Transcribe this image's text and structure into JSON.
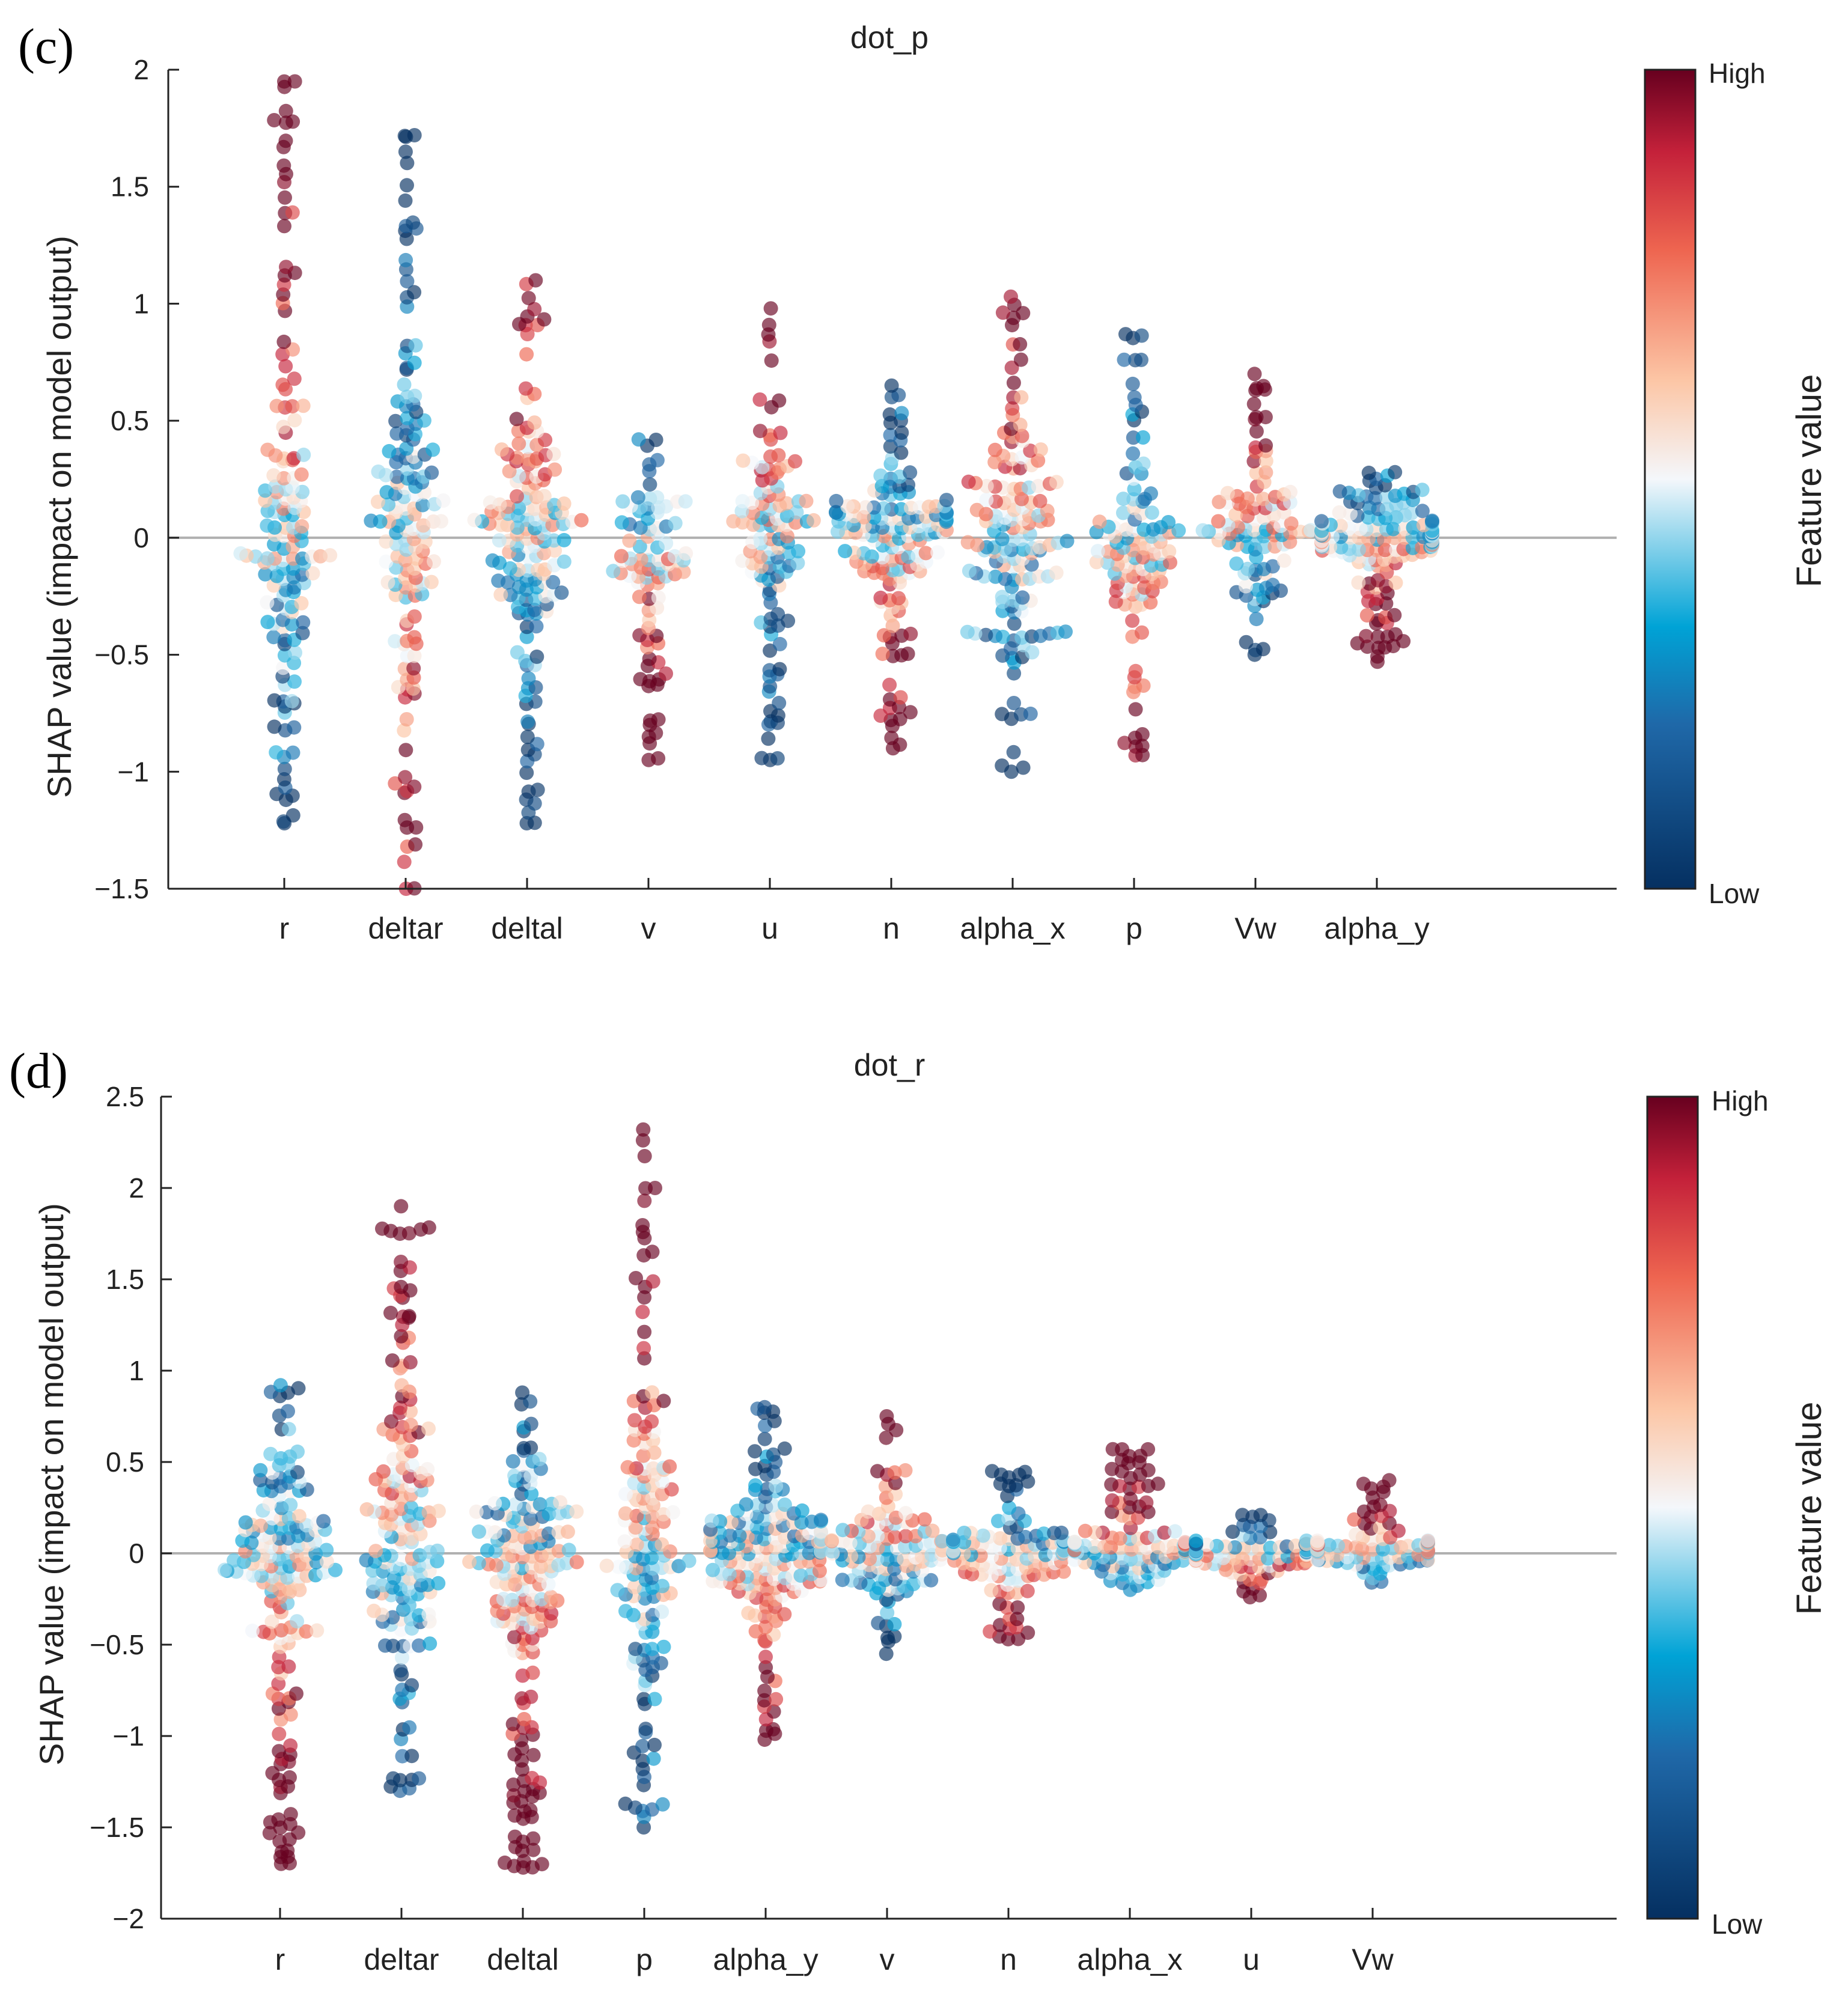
{
  "chart_data": [
    {
      "panel_label": "(c)",
      "type": "scatter",
      "subtype": "shap-beeswarm",
      "title": "dot_p",
      "ylabel": "SHAP value (impact on model output)",
      "xlabel": "",
      "ylim": [
        -1.5,
        2
      ],
      "yticks": [
        2,
        1.5,
        1,
        0.5,
        0,
        -0.5,
        -1,
        -1.5
      ],
      "ytick_labels": [
        "2",
        "1.5",
        "1",
        "0.5",
        "0",
        "−0.5",
        "−1",
        "−1.5"
      ],
      "categories": [
        "r",
        "deltar",
        "deltal",
        "v",
        "u",
        "n",
        "alpha_x",
        "p",
        "Vw",
        "alpha_y"
      ],
      "zero_line": true,
      "colorbar": {
        "label": "Feature value",
        "high": "High",
        "low": "Low"
      },
      "features": [
        {
          "name": "r",
          "min": -1.22,
          "max": 1.95,
          "count": 150
        },
        {
          "name": "deltar",
          "min": -1.5,
          "max": 1.72,
          "count": 150
        },
        {
          "name": "deltal",
          "min": -1.22,
          "max": 1.1,
          "count": 160
        },
        {
          "name": "v",
          "min": -0.95,
          "max": 0.42,
          "count": 90
        },
        {
          "name": "u",
          "min": -0.95,
          "max": 0.98,
          "count": 110
        },
        {
          "name": "n",
          "min": -0.9,
          "max": 0.65,
          "count": 150
        },
        {
          "name": "alpha_x",
          "min": -1.0,
          "max": 1.03,
          "count": 150
        },
        {
          "name": "p",
          "min": -0.93,
          "max": 0.87,
          "count": 110
        },
        {
          "name": "Vw",
          "min": -0.5,
          "max": 0.7,
          "count": 100
        },
        {
          "name": "alpha_y",
          "min": -0.53,
          "max": 0.28,
          "count": 150
        }
      ]
    },
    {
      "panel_label": "(d)",
      "type": "scatter",
      "subtype": "shap-beeswarm",
      "title": "dot_r",
      "ylabel": "SHAP value (impact on model output)",
      "xlabel": "",
      "ylim": [
        -2,
        2.5
      ],
      "yticks": [
        2.5,
        2,
        1.5,
        1,
        0.5,
        0,
        -0.5,
        -1,
        -1.5,
        -2
      ],
      "ytick_labels": [
        "2.5",
        "2",
        "1.5",
        "1",
        "0.5",
        "0",
        "−0.5",
        "−1",
        "−1.5",
        "−2"
      ],
      "categories": [
        "r",
        "deltar",
        "deltal",
        "p",
        "alpha_y",
        "v",
        "n",
        "alpha_x",
        "u",
        "Vw"
      ],
      "zero_line": true,
      "colorbar": {
        "label": "Feature value",
        "high": "High",
        "low": "Low"
      },
      "features": [
        {
          "name": "r",
          "min": -1.7,
          "max": 0.92,
          "count": 170
        },
        {
          "name": "deltar",
          "min": -1.3,
          "max": 1.9,
          "count": 170
        },
        {
          "name": "deltal",
          "min": -1.72,
          "max": 0.88,
          "count": 180
        },
        {
          "name": "p",
          "min": -1.5,
          "max": 2.32,
          "count": 150
        },
        {
          "name": "alpha_y",
          "min": -1.02,
          "max": 0.8,
          "count": 170
        },
        {
          "name": "v",
          "min": -0.55,
          "max": 0.75,
          "count": 110
        },
        {
          "name": "n",
          "min": -0.47,
          "max": 0.45,
          "count": 110
        },
        {
          "name": "alpha_x",
          "min": -0.2,
          "max": 0.57,
          "count": 110
        },
        {
          "name": "u",
          "min": -0.24,
          "max": 0.21,
          "count": 90
        },
        {
          "name": "Vw",
          "min": -0.16,
          "max": 0.4,
          "count": 80
        }
      ]
    }
  ]
}
